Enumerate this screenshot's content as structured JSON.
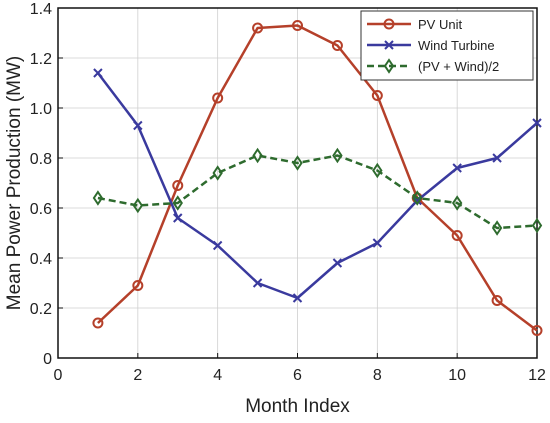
{
  "chart_data": {
    "type": "line",
    "title": "",
    "xlabel": "Month Index",
    "ylabel": "Mean Power Production (MW)",
    "xlim": [
      0,
      12
    ],
    "ylim": [
      0,
      1.4
    ],
    "xticks": [
      0,
      2,
      4,
      6,
      8,
      10,
      12
    ],
    "yticks": [
      0,
      0.2,
      0.4,
      0.6,
      0.8,
      1.0,
      1.2,
      1.4
    ],
    "xtick_labels": [
      "0",
      "2",
      "4",
      "6",
      "8",
      "10",
      "12"
    ],
    "ytick_labels": [
      "0",
      "0.2",
      "0.4",
      "0.6",
      "0.8",
      "1.0",
      "1.2",
      "1.4"
    ],
    "grid": true,
    "legend_position": "top-right",
    "x": [
      1,
      2,
      3,
      4,
      5,
      6,
      7,
      8,
      9,
      10,
      11,
      12
    ],
    "series": [
      {
        "name": "PV Unit",
        "color": "#b5402a",
        "marker": "circle",
        "line_style": "solid",
        "values": [
          0.14,
          0.29,
          0.69,
          1.04,
          1.32,
          1.33,
          1.25,
          1.05,
          0.64,
          0.49,
          0.23,
          0.11
        ]
      },
      {
        "name": "Wind Turbine",
        "color": "#3a3a9e",
        "marker": "x",
        "line_style": "solid",
        "values": [
          1.14,
          0.93,
          0.56,
          0.45,
          0.3,
          0.24,
          0.38,
          0.46,
          0.63,
          0.76,
          0.8,
          0.94
        ]
      },
      {
        "name": "(PV + Wind)/2",
        "color": "#2e6b2e",
        "marker": "diamond",
        "line_style": "dashed",
        "values": [
          0.64,
          0.61,
          0.62,
          0.74,
          0.81,
          0.78,
          0.81,
          0.75,
          0.64,
          0.62,
          0.52,
          0.53
        ]
      }
    ]
  }
}
